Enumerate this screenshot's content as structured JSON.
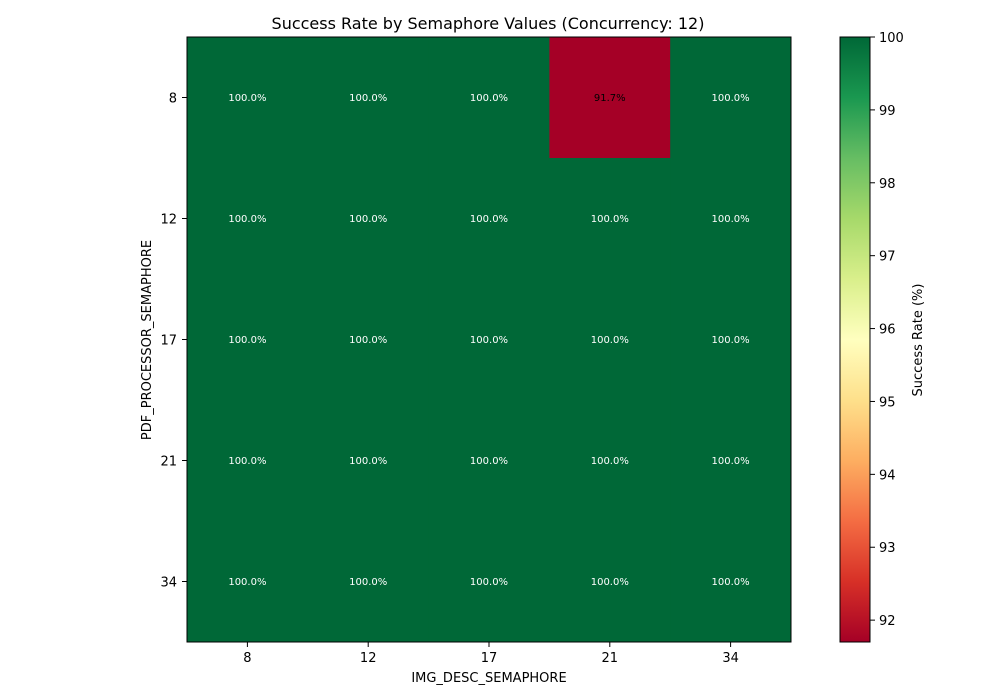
{
  "chart_data": {
    "type": "heatmap",
    "title": "Success Rate by Semaphore Values (Concurrency: 12)",
    "xlabel": "IMG_DESC_SEMAPHORE",
    "ylabel": "PDF_PROCESSOR_SEMAPHORE",
    "x": [
      "8",
      "12",
      "17",
      "21",
      "34"
    ],
    "y": [
      "8",
      "12",
      "17",
      "21",
      "34"
    ],
    "values": [
      [
        100.0,
        100.0,
        100.0,
        91.7,
        100.0
      ],
      [
        100.0,
        100.0,
        100.0,
        100.0,
        100.0
      ],
      [
        100.0,
        100.0,
        100.0,
        100.0,
        100.0
      ],
      [
        100.0,
        100.0,
        100.0,
        100.0,
        100.0
      ],
      [
        100.0,
        100.0,
        100.0,
        100.0,
        100.0
      ]
    ],
    "cell_labels": [
      [
        "100.0%",
        "100.0%",
        "100.0%",
        "91.7%",
        "100.0%"
      ],
      [
        "100.0%",
        "100.0%",
        "100.0%",
        "100.0%",
        "100.0%"
      ],
      [
        "100.0%",
        "100.0%",
        "100.0%",
        "100.0%",
        "100.0%"
      ],
      [
        "100.0%",
        "100.0%",
        "100.0%",
        "100.0%",
        "100.0%"
      ],
      [
        "100.0%",
        "100.0%",
        "100.0%",
        "100.0%",
        "100.0%"
      ]
    ],
    "colormap": "RdYlGn",
    "colorbar": {
      "label": "Success Rate (%)",
      "range": [
        91.7,
        100
      ],
      "ticks": [
        "92",
        "93",
        "94",
        "95",
        "96",
        "97",
        "98",
        "99",
        "100"
      ]
    },
    "grid": false,
    "legend": "none"
  }
}
